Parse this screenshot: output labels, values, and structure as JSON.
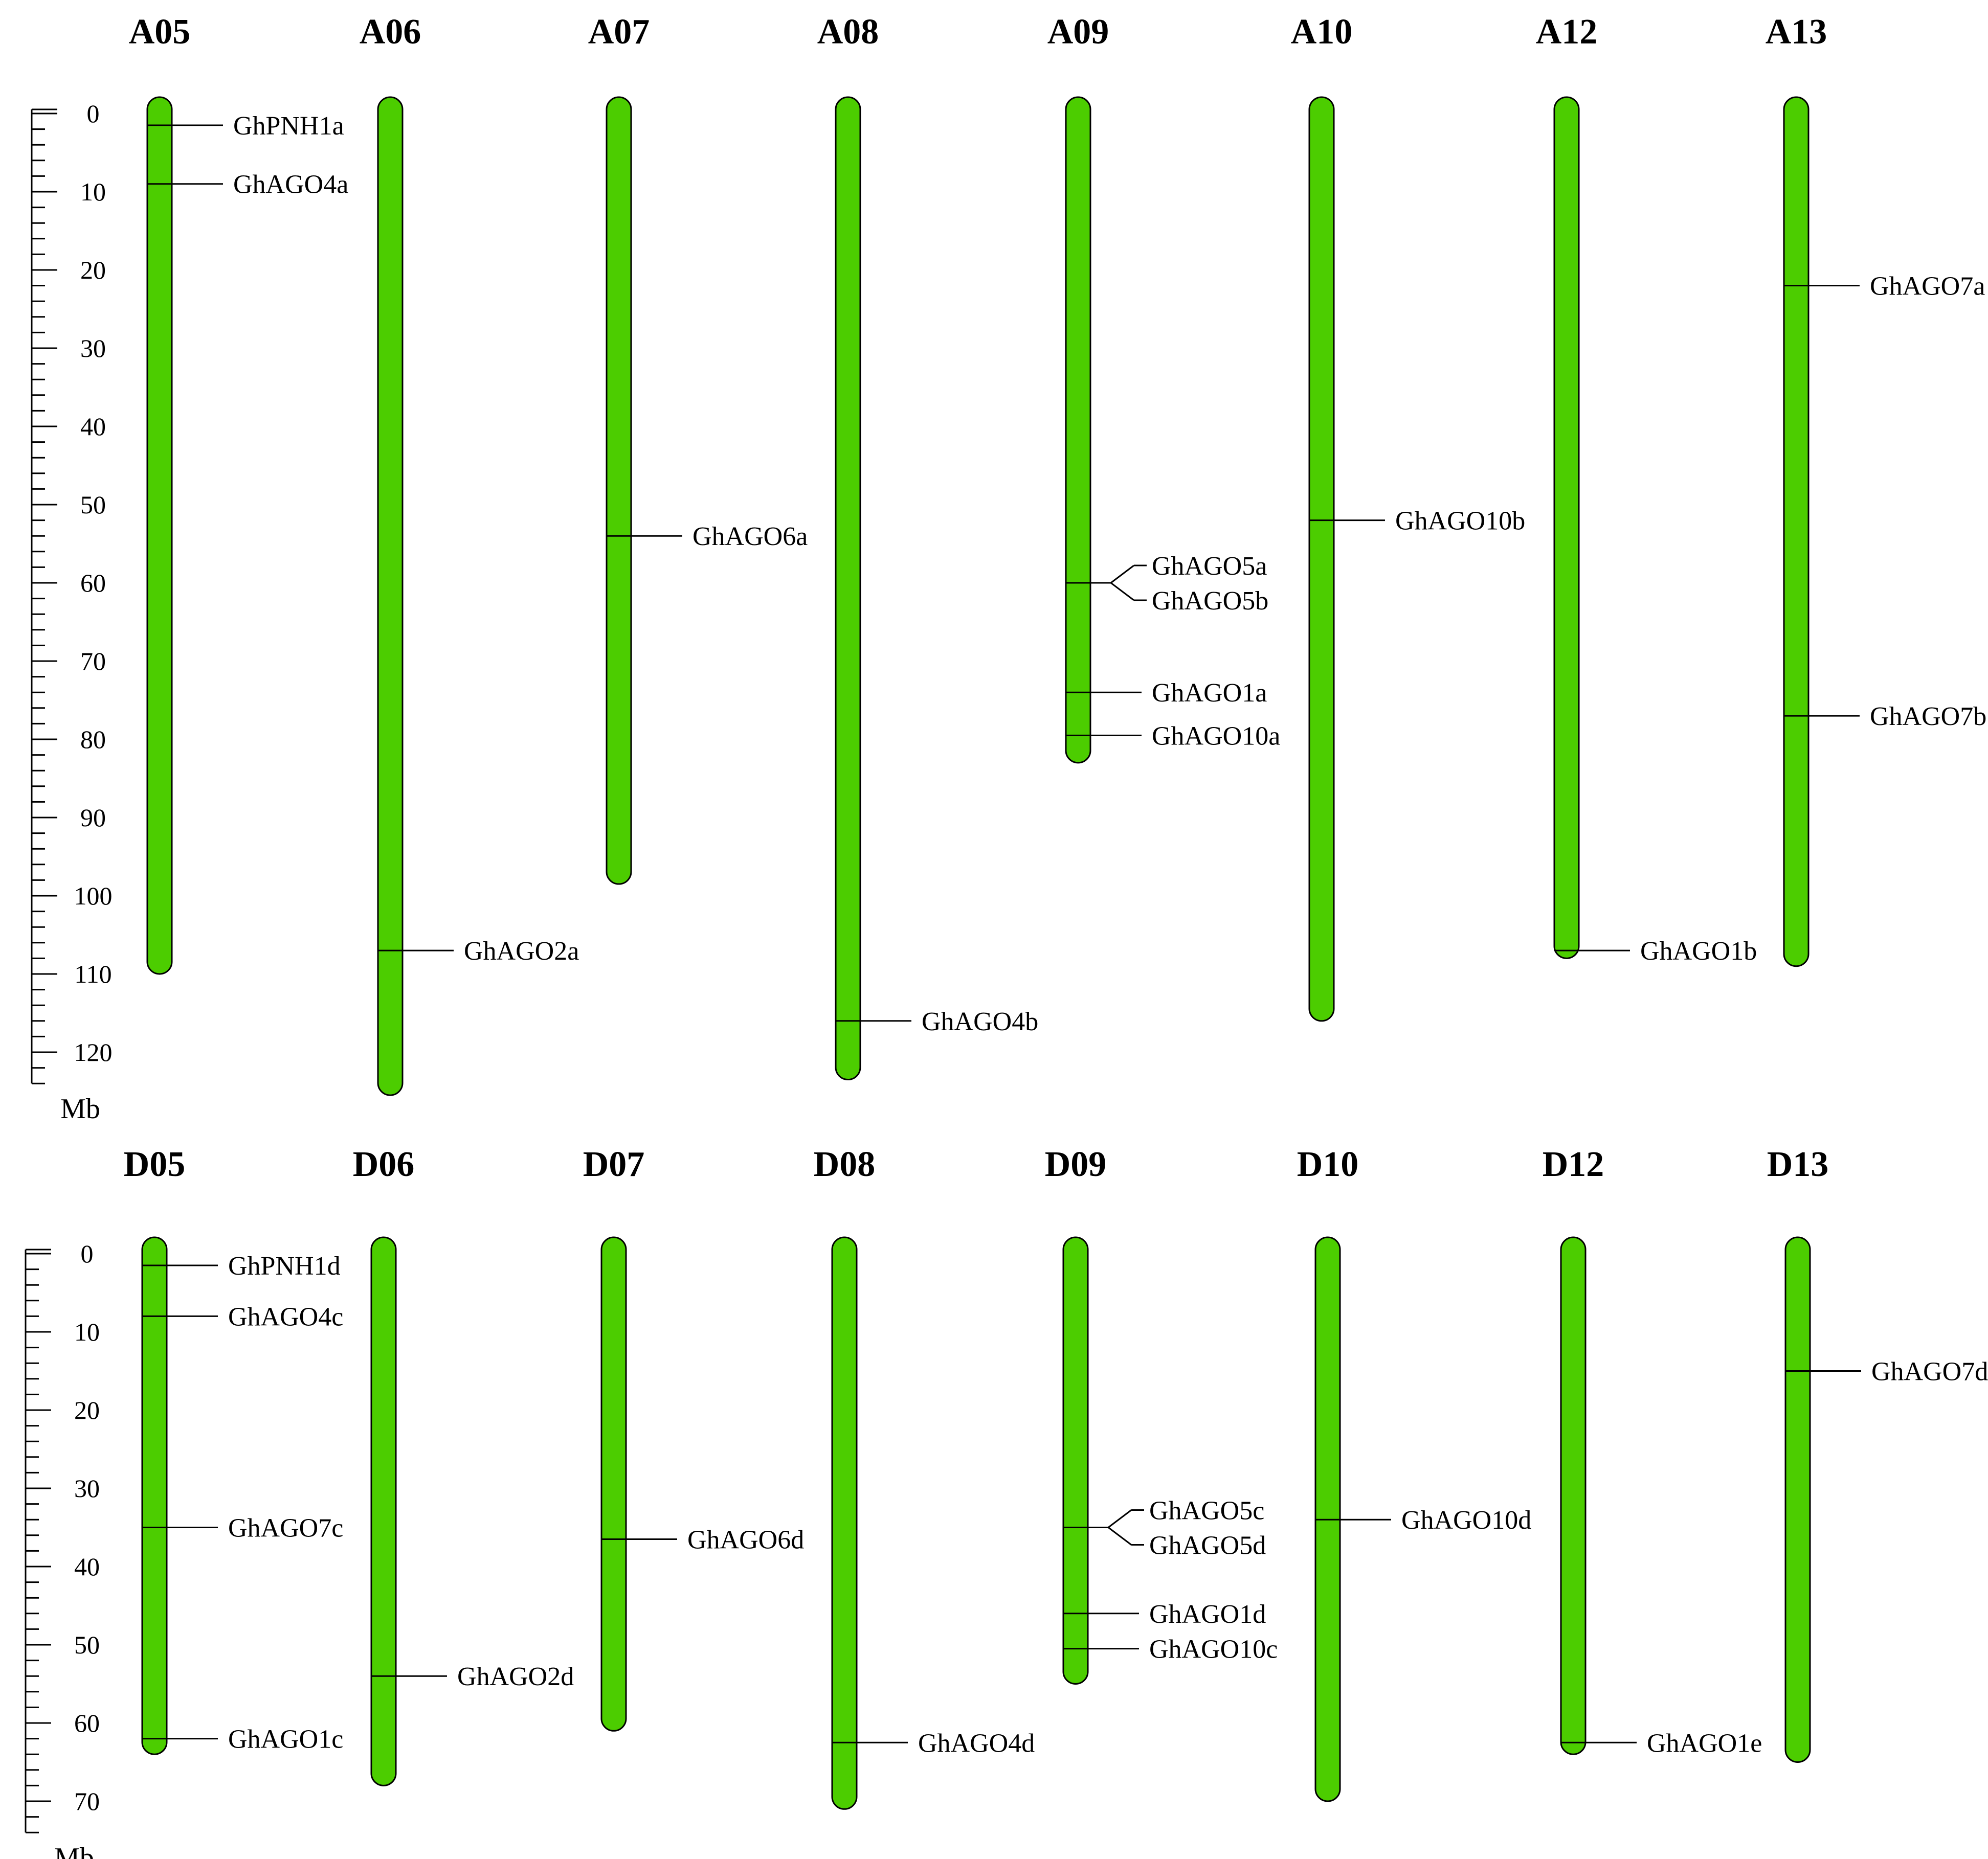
{
  "units": "Mb",
  "panels": [
    {
      "id": "A",
      "scale_ticks": [
        0,
        10,
        20,
        30,
        40,
        50,
        60,
        70,
        80,
        90,
        100,
        110,
        120
      ],
      "scale_max": 124,
      "chromosomes": [
        {
          "name": "A05",
          "length": 110,
          "genes": [
            {
              "name": "GhPNH1a",
              "pos": 1.5
            },
            {
              "name": "GhAGO4a",
              "pos": 9
            }
          ]
        },
        {
          "name": "A06",
          "length": 125.5,
          "genes": [
            {
              "name": "GhAGO2a",
              "pos": 107
            }
          ]
        },
        {
          "name": "A07",
          "length": 98.5,
          "genes": [
            {
              "name": "GhAGO6a",
              "pos": 54
            }
          ]
        },
        {
          "name": "A08",
          "length": 123.5,
          "genes": [
            {
              "name": "GhAGO4b",
              "pos": 116
            }
          ]
        },
        {
          "name": "A09",
          "length": 83,
          "genes": [
            {
              "name": "GhAGO5a",
              "pos": 60
            },
            {
              "name": "GhAGO5b",
              "pos": 60
            },
            {
              "name": "GhAGO1a",
              "pos": 74
            },
            {
              "name": "GhAGO10a",
              "pos": 79.5
            }
          ]
        },
        {
          "name": "A10",
          "length": 116,
          "genes": [
            {
              "name": "GhAGO10b",
              "pos": 52
            }
          ]
        },
        {
          "name": "A12",
          "length": 108,
          "genes": [
            {
              "name": "GhAGO1b",
              "pos": 107
            }
          ]
        },
        {
          "name": "A13",
          "length": 109,
          "genes": [
            {
              "name": "GhAGO7a",
              "pos": 22
            },
            {
              "name": "GhAGO7b",
              "pos": 77
            }
          ]
        }
      ]
    },
    {
      "id": "D",
      "scale_ticks": [
        0,
        10,
        20,
        30,
        40,
        50,
        60,
        70
      ],
      "scale_max": 74,
      "chromosomes": [
        {
          "name": "D05",
          "length": 64,
          "genes": [
            {
              "name": "GhPNH1d",
              "pos": 1.5
            },
            {
              "name": "GhAGO4c",
              "pos": 8
            },
            {
              "name": "GhAGO7c",
              "pos": 35
            },
            {
              "name": "GhAGO1c",
              "pos": 62
            }
          ]
        },
        {
          "name": "D06",
          "length": 68,
          "genes": [
            {
              "name": "GhAGO2d",
              "pos": 54
            }
          ]
        },
        {
          "name": "D07",
          "length": 61,
          "genes": [
            {
              "name": "GhAGO6d",
              "pos": 36.5
            }
          ]
        },
        {
          "name": "D08",
          "length": 71,
          "genes": [
            {
              "name": "GhAGO4d",
              "pos": 62.5
            }
          ]
        },
        {
          "name": "D09",
          "length": 55,
          "genes": [
            {
              "name": "GhAGO5c",
              "pos": 35
            },
            {
              "name": "GhAGO5d",
              "pos": 35
            },
            {
              "name": "GhAGO1d",
              "pos": 46
            },
            {
              "name": "GhAGO10c",
              "pos": 50.5
            }
          ]
        },
        {
          "name": "D10",
          "length": 70,
          "genes": [
            {
              "name": "GhAGO10d",
              "pos": 34
            }
          ]
        },
        {
          "name": "D12",
          "length": 64,
          "genes": [
            {
              "name": "GhAGO1e",
              "pos": 62.5
            }
          ]
        },
        {
          "name": "D13",
          "length": 65,
          "genes": [
            {
              "name": "GhAGO7d",
              "pos": 15
            }
          ]
        }
      ]
    }
  ]
}
